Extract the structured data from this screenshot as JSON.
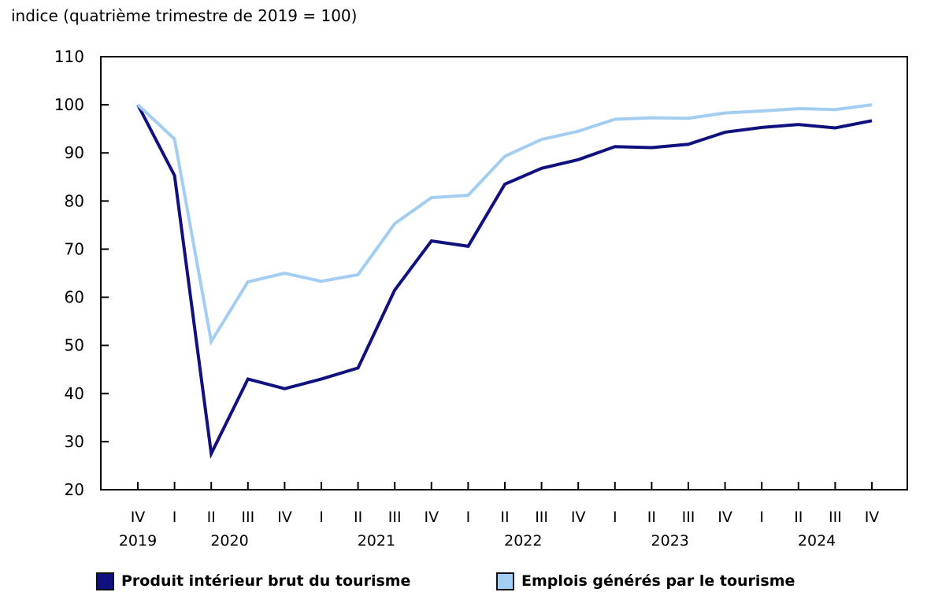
{
  "chart_data": {
    "type": "line",
    "title": "indice (quatrième trimestre de 2019 = 100)",
    "x_quarters": [
      "IV",
      "I",
      "II",
      "III",
      "IV",
      "I",
      "II",
      "III",
      "IV",
      "I",
      "II",
      "III",
      "IV",
      "I",
      "II",
      "III",
      "IV",
      "I",
      "II",
      "III",
      "IV"
    ],
    "year_labels": [
      {
        "label": "2019",
        "at_index": 0
      },
      {
        "label": "2020",
        "at_index": 2.5
      },
      {
        "label": "2021",
        "at_index": 6.5
      },
      {
        "label": "2022",
        "at_index": 10.5
      },
      {
        "label": "2023",
        "at_index": 14.5
      },
      {
        "label": "2024",
        "at_index": 18.5
      }
    ],
    "ylim": [
      20,
      110
    ],
    "ytick_step": 10,
    "grid": false,
    "legend_position": "bottom",
    "axis_color": "#000000",
    "text_color": "#000000",
    "series": [
      {
        "name": "Produit intérieur brut du tourisme",
        "color": "#10107E",
        "values": [
          100,
          85.3,
          27.5,
          43,
          41,
          43,
          45.3,
          61.5,
          71.7,
          70.6,
          83.5,
          86.8,
          88.6,
          91.3,
          91.1,
          91.8,
          94.3,
          95.3,
          95.9,
          95.2,
          96.7
        ]
      },
      {
        "name": "Emplois générés par le tourisme",
        "color": "#A3CEF2",
        "values": [
          100,
          92.9,
          50.8,
          63.2,
          65,
          63.3,
          64.7,
          75.3,
          80.7,
          81.2,
          89.3,
          92.8,
          94.5,
          97,
          97.3,
          97.2,
          98.3,
          98.7,
          99.2,
          99,
          100
        ]
      }
    ]
  }
}
